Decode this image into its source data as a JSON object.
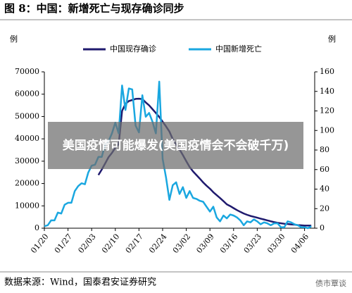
{
  "chart_data": {
    "type": "line",
    "title": "图 8：中国：新增死亡与现存确诊同步",
    "y_label": "例",
    "y2_label": "例",
    "source": "数据来源：Wind，国泰君安证券研究",
    "overlay": "美国疫情可能爆发(美国疫情会不会破千万)",
    "watermark": "债市覃谈",
    "categories": [
      "01/20",
      null,
      null,
      null,
      null,
      null,
      null,
      "01/27",
      null,
      null,
      null,
      null,
      null,
      null,
      "02/03",
      null,
      null,
      null,
      null,
      null,
      null,
      "02/10",
      null,
      null,
      null,
      null,
      null,
      null,
      "02/17",
      null,
      null,
      null,
      null,
      null,
      null,
      "02/24",
      null,
      null,
      null,
      null,
      null,
      null,
      "03/02",
      null,
      null,
      null,
      null,
      null,
      null,
      "03/09",
      null,
      null,
      null,
      null,
      null,
      null,
      "03/16",
      null,
      null,
      null,
      null,
      null,
      null,
      "03/23",
      null,
      null,
      null,
      null,
      null,
      null,
      "03/30",
      null,
      null,
      null,
      null,
      null,
      null,
      "04/06",
      null,
      null
    ],
    "series": [
      {
        "name": "中国现存确诊",
        "color": "#1f1a6e",
        "axis": "y",
        "values": [
          null,
          null,
          null,
          null,
          null,
          null,
          null,
          null,
          null,
          null,
          null,
          null,
          null,
          null,
          null,
          null,
          23800,
          26300,
          29000,
          31800,
          33700,
          36000,
          37600,
          52500,
          55700,
          56900,
          57400,
          57900,
          58000,
          57800,
          56300,
          55000,
          53300,
          51600,
          49800,
          47700,
          45600,
          43300,
          39900,
          37400,
          35300,
          32700,
          30000,
          27400,
          25400,
          23800,
          22200,
          20500,
          19000,
          17700,
          16100,
          14800,
          13500,
          12100,
          10700,
          9900,
          9000,
          8100,
          7300,
          6600,
          6000,
          5500,
          5100,
          4700,
          4300,
          3900,
          3500,
          3100,
          2700,
          2400,
          2200,
          2000,
          1900,
          1700,
          1600,
          1400,
          1300,
          1200,
          1200,
          1200
        ]
      },
      {
        "name": "中国新增死亡",
        "color": "#1aa7e0",
        "axis": "y2",
        "values": [
          2,
          3,
          8,
          8,
          16,
          15,
          24,
          26,
          26,
          38,
          43,
          46,
          45,
          57,
          64,
          65,
          73,
          73,
          86,
          89,
          97,
          108,
          97,
          146,
          121,
          143,
          142,
          105,
          98,
          136,
          114,
          118,
          109,
          97,
          150,
          71,
          52,
          29,
          44,
          47,
          35,
          42,
          31,
          38,
          31,
          30,
          28,
          27,
          22,
          17,
          22,
          11,
          7,
          13,
          10,
          14,
          13,
          11,
          8,
          3,
          7,
          6,
          9,
          7,
          4,
          6,
          5,
          3,
          5,
          5,
          1,
          1,
          7,
          6,
          4,
          3,
          1,
          1,
          0,
          2
        ]
      }
    ],
    "ylim": [
      0,
      70000
    ],
    "yticks": [
      0,
      10000,
      20000,
      30000,
      40000,
      50000,
      60000,
      70000
    ],
    "y2lim": [
      0,
      160
    ],
    "y2ticks": [
      0,
      20,
      40,
      60,
      80,
      100,
      120,
      140,
      160
    ]
  }
}
